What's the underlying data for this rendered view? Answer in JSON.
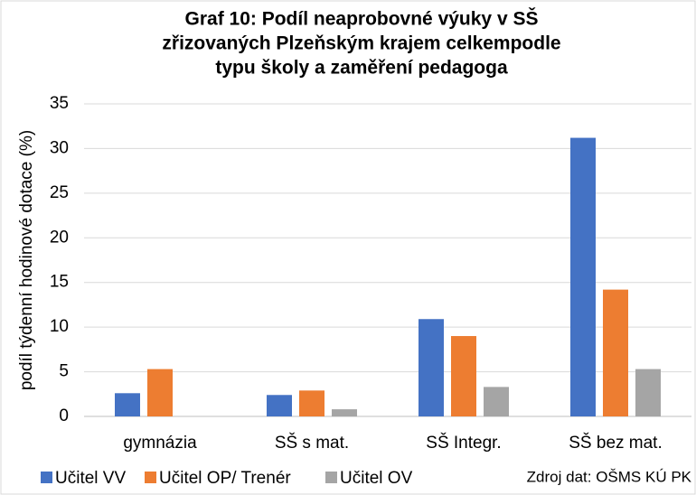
{
  "chart_data": {
    "type": "bar",
    "title": [
      "Graf 10: Podíl neaprobovné výuky v SŠ",
      "zřizovaných Plzeňským krajem celkempodle",
      "typu školy a zaměření pedagoga"
    ],
    "y_label": "podíl týdenní hodinové dotace (%)",
    "categories": [
      "gymnázia",
      "SŠ s mat.",
      "SŠ Integr.",
      "SŠ bez mat."
    ],
    "series": [
      {
        "name": "Učitel VV",
        "color": "#4472c4",
        "values": [
          2.6,
          2.4,
          10.9,
          31.2
        ]
      },
      {
        "name": "Učitel OP/ Trenér",
        "color": "#ed7d31",
        "values": [
          5.3,
          2.9,
          9.0,
          14.2
        ]
      },
      {
        "name": "Učitel OV",
        "color": "#a5a5a5",
        "values": [
          null,
          0.8,
          3.3,
          5.3
        ]
      }
    ],
    "ylim": [
      0,
      35
    ],
    "yticks": [
      0,
      5,
      10,
      15,
      20,
      25,
      30,
      35
    ],
    "grid": true,
    "legend": "bottom",
    "source": "Zdroj dat: OŠMS KÚ PK"
  }
}
